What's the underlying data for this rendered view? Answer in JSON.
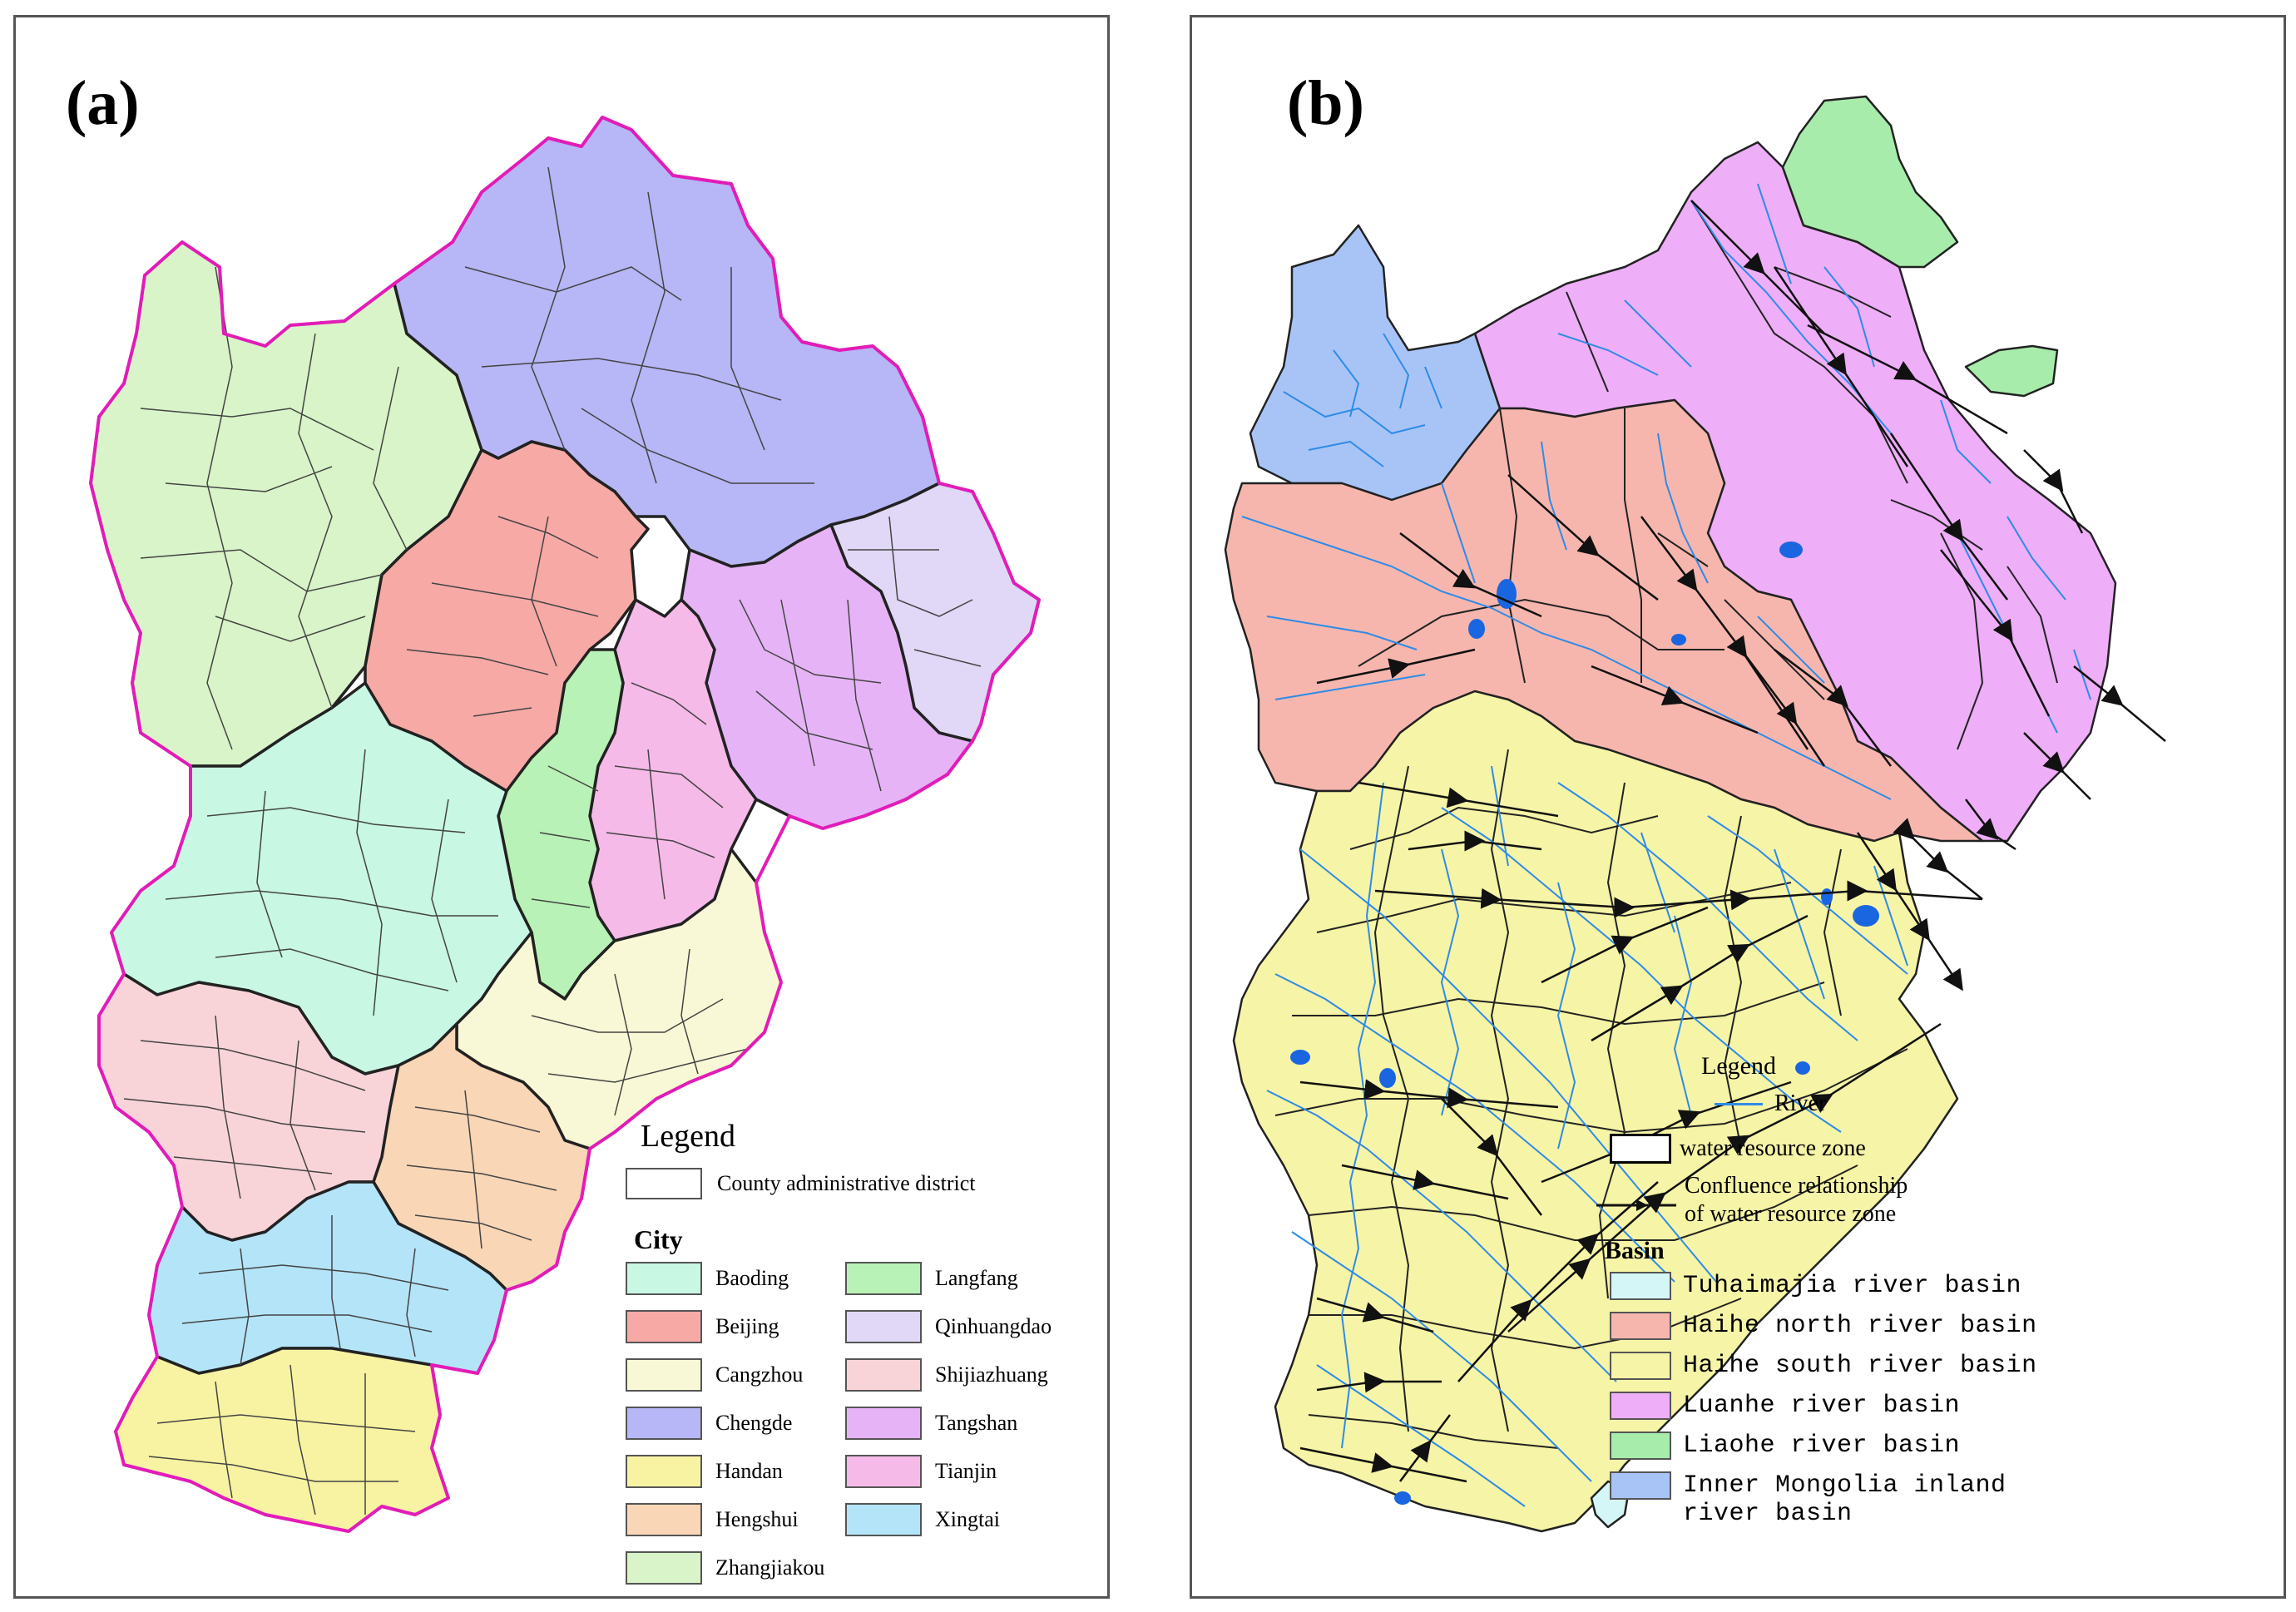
{
  "panel_a": {
    "label": "(a)",
    "legend": {
      "title": "Legend",
      "county_label": "County administrative district",
      "city_title": "City",
      "cities": [
        {
          "name": "Baoding",
          "color": "#c8f7e3"
        },
        {
          "name": "Langfang",
          "color": "#b8f2b6"
        },
        {
          "name": "Beijing",
          "color": "#f7a9a6"
        },
        {
          "name": "Qinhuangdao",
          "color": "#e0d8f6"
        },
        {
          "name": "Cangzhou",
          "color": "#f8f8d6"
        },
        {
          "name": "Shijiazhuang",
          "color": "#f8d4d8"
        },
        {
          "name": "Chengde",
          "color": "#b7b6f6"
        },
        {
          "name": "Tangshan",
          "color": "#e6b4f6"
        },
        {
          "name": "Handan",
          "color": "#f8f3a2"
        },
        {
          "name": "Tianjin",
          "color": "#f6bae9"
        },
        {
          "name": "Hengshui",
          "color": "#f8d6b6"
        },
        {
          "name": "Xingtai",
          "color": "#b4e4f8"
        },
        {
          "name": "Zhangjiakou",
          "color": "#d8f4c8"
        }
      ]
    },
    "boundary_color": "#e21cb8"
  },
  "panel_b": {
    "label": "(b)",
    "legend": {
      "title": "Legend",
      "river_label": "River",
      "river_color": "#2f8be6",
      "zone_label": "water resource zone",
      "confluence_label_1": "Confluence relationship",
      "confluence_label_2": "of water resource zone",
      "basin_title": "Basin",
      "basins": [
        {
          "name": "Tuhaimajia river basin",
          "color": "#d4f6f6"
        },
        {
          "name": "Haihe north river basin",
          "color": "#f6b6ae"
        },
        {
          "name": "Haihe south river basin",
          "color": "#f6f4a6"
        },
        {
          "name": "Luanhe river basin",
          "color": "#eeaef8"
        },
        {
          "name": "Liaohe river basin",
          "color": "#a8ecab"
        },
        {
          "name": "Inner Mongolia inland river basin",
          "color": "#a8c4f6"
        }
      ]
    }
  }
}
